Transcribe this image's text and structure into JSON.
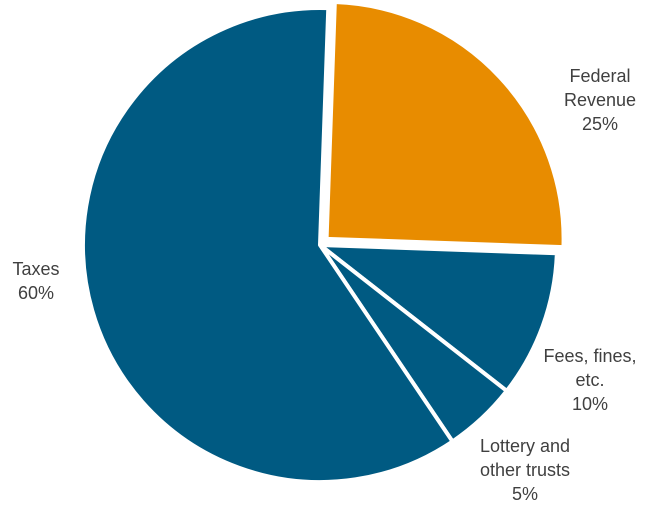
{
  "chart_data": {
    "type": "pie",
    "title": "",
    "slices": [
      {
        "name": "Federal Revenue",
        "label_lines": [
          "Federal",
          "Revenue"
        ],
        "value": 25,
        "value_label": "25%",
        "color": "#e88c00",
        "exploded": true
      },
      {
        "name": "Fees, fines, etc.",
        "label_lines": [
          "Fees, fines,",
          "etc."
        ],
        "value": 10,
        "value_label": "10%",
        "color": "#005a82",
        "exploded": false
      },
      {
        "name": "Lottery and other trusts",
        "label_lines": [
          "Lottery and",
          "other trusts"
        ],
        "value": 5,
        "value_label": "5%",
        "color": "#005a82",
        "exploded": false
      },
      {
        "name": "Taxes",
        "label_lines": [
          "Taxes"
        ],
        "value": 60,
        "value_label": "60%",
        "color": "#005a82",
        "exploded": false
      }
    ],
    "start_angle_deg": 2,
    "direction": "clockwise",
    "legend": "none",
    "separator_color": "#ffffff"
  }
}
